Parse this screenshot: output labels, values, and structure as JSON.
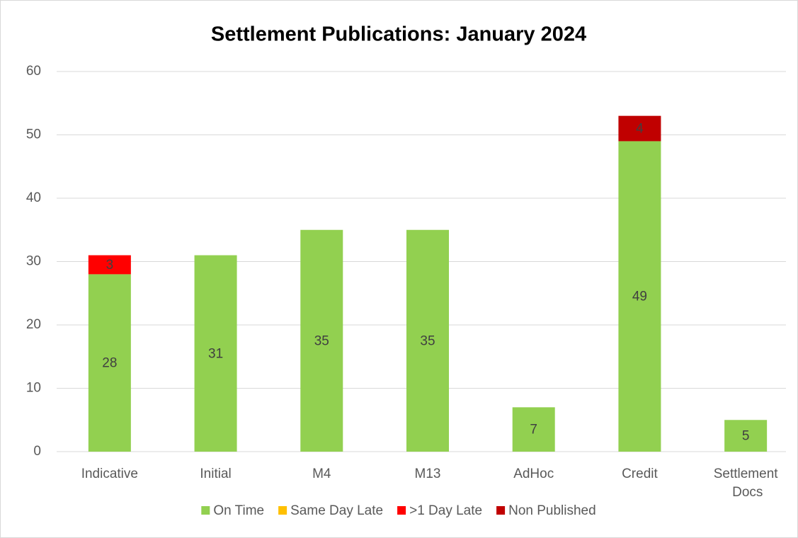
{
  "chart_data": {
    "type": "stacked_bar",
    "title": "Settlement Publications: January 2024",
    "categories": [
      "Indicative",
      "Initial",
      "M4",
      "M13",
      "AdHoc",
      "Credit",
      "Settlement Docs"
    ],
    "series": [
      {
        "name": "On Time",
        "color": "#92d050",
        "values": [
          28,
          31,
          35,
          35,
          7,
          49,
          5
        ]
      },
      {
        "name": "Same Day Late",
        "color": "#ffc000",
        "values": [
          null,
          null,
          null,
          null,
          null,
          null,
          null
        ]
      },
      {
        "name": ">1 Day Late",
        "color": "#ff0000",
        "values": [
          3,
          null,
          null,
          null,
          null,
          null,
          null
        ]
      },
      {
        "name": "Non Published",
        "color": "#c00000",
        "values": [
          null,
          null,
          null,
          null,
          null,
          4,
          null
        ]
      }
    ],
    "ylim": [
      0,
      60
    ],
    "yticks": [
      0,
      10,
      20,
      30,
      40,
      50,
      60
    ],
    "grid": true,
    "legend": "bottom"
  }
}
